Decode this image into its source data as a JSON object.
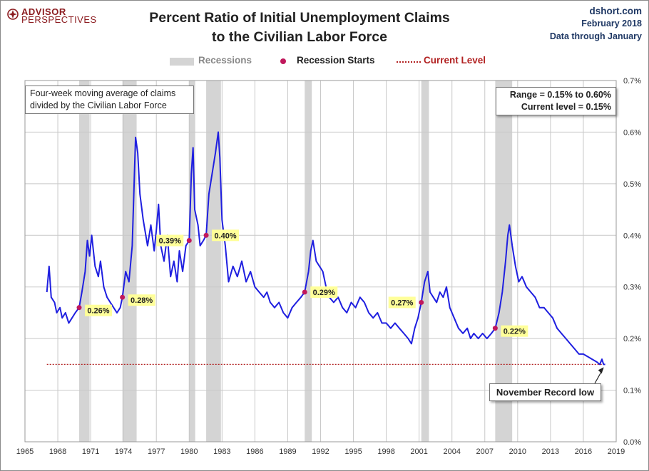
{
  "logo": {
    "line1": "ADVISOR",
    "line2": "PERSPECTIVES"
  },
  "header": {
    "title_line1": "Percent Ratio of Initial Unemployment Claims",
    "title_line2": "to the Civilian Labor Force",
    "site": "dshort.com",
    "date": "February 2018",
    "data_through": "Data through January"
  },
  "legend": {
    "recessions": "Recessions",
    "recession_starts": "Recession Starts",
    "current_level": "Current Level"
  },
  "notes": {
    "line1": "Four-week moving average of claims",
    "line2": "divided by the Civilian Labor Force"
  },
  "range_box": {
    "line1": "Range = 0.15% to 0.60%",
    "line2": "Current level = 0.15%"
  },
  "record_box": "November Record low",
  "colors": {
    "line": "#1f1fe0",
    "recession_band": "#d4d4d4",
    "recession_dot": "#c0185c",
    "current_level": "#b22222",
    "callout_fill": "#ffff99",
    "grid": "#c8c8c8",
    "logo": "#8c1c20",
    "meta_text": "#1f3864"
  },
  "chart_data": {
    "type": "line",
    "title": "Percent Ratio of Initial Unemployment Claims to the Civilian Labor Force",
    "xlim": [
      1965,
      2019
    ],
    "ylim": [
      0.0,
      0.7
    ],
    "x_ticks": [
      1965,
      1968,
      1971,
      1974,
      1977,
      1980,
      1983,
      1986,
      1989,
      1992,
      1995,
      1998,
      2001,
      2004,
      2007,
      2010,
      2013,
      2016,
      2019
    ],
    "y_ticks": [
      0.0,
      0.1,
      0.2,
      0.3,
      0.4,
      0.5,
      0.6,
      0.7
    ],
    "y_tick_labels": [
      "0.0%",
      "0.1%",
      "0.2%",
      "0.3%",
      "0.4%",
      "0.5%",
      "0.6%",
      "0.7%"
    ],
    "grid": true,
    "legend_position": "top",
    "current_level": 0.15,
    "recessions": [
      [
        1969.95,
        1970.9
      ],
      [
        1973.9,
        1975.2
      ],
      [
        1980.0,
        1980.55
      ],
      [
        1981.55,
        1982.9
      ],
      [
        1990.55,
        1991.2
      ],
      [
        2001.2,
        2001.9
      ],
      [
        2007.95,
        2009.5
      ]
    ],
    "recession_starts": [
      {
        "x": 1969.95,
        "y": 0.26,
        "label": "0.26%"
      },
      {
        "x": 1973.9,
        "y": 0.28,
        "label": "0.28%"
      },
      {
        "x": 1980.0,
        "y": 0.39,
        "label": "0.39%"
      },
      {
        "x": 1981.55,
        "y": 0.4,
        "label": "0.40%"
      },
      {
        "x": 1990.55,
        "y": 0.29,
        "label": "0.29%"
      },
      {
        "x": 2001.2,
        "y": 0.27,
        "label": "0.27%"
      },
      {
        "x": 2007.95,
        "y": 0.22,
        "label": "0.22%"
      }
    ],
    "series": [
      {
        "x": [
          1967.0,
          1967.2,
          1967.4,
          1967.7,
          1967.9,
          1968.2,
          1968.4,
          1968.7,
          1969.0,
          1969.3,
          1969.6,
          1969.95,
          1970.2,
          1970.5,
          1970.7,
          1970.9,
          1971.1,
          1971.4,
          1971.7,
          1971.9,
          1972.2,
          1972.5,
          1972.8,
          1973.1,
          1973.4,
          1973.7,
          1973.9,
          1974.2,
          1974.5,
          1974.8,
          1975.0,
          1975.1,
          1975.3,
          1975.5,
          1975.8,
          1976.2,
          1976.5,
          1976.8,
          1977.0,
          1977.2,
          1977.4,
          1977.7,
          1978.0,
          1978.3,
          1978.6,
          1978.9,
          1979.1,
          1979.4,
          1979.7,
          1980.0,
          1980.2,
          1980.35,
          1980.5,
          1980.8,
          1981.0,
          1981.3,
          1981.55,
          1981.8,
          1982.1,
          1982.4,
          1982.65,
          1982.8,
          1983.0,
          1983.3,
          1983.6,
          1984.0,
          1984.4,
          1984.8,
          1985.2,
          1985.6,
          1986.0,
          1986.4,
          1986.8,
          1987.1,
          1987.4,
          1987.8,
          1988.2,
          1988.6,
          1989.0,
          1989.4,
          1989.8,
          1990.2,
          1990.55,
          1990.9,
          1991.1,
          1991.3,
          1991.6,
          1991.9,
          1992.2,
          1992.5,
          1992.8,
          1993.2,
          1993.6,
          1994.0,
          1994.4,
          1994.8,
          1995.2,
          1995.6,
          1996.0,
          1996.4,
          1996.8,
          1997.2,
          1997.6,
          1998.0,
          1998.4,
          1998.8,
          1999.2,
          1999.6,
          2000.0,
          2000.3,
          2000.6,
          2000.9,
          2001.2,
          2001.5,
          2001.8,
          2002.0,
          2002.3,
          2002.6,
          2002.9,
          2003.2,
          2003.5,
          2003.8,
          2004.2,
          2004.6,
          2005.0,
          2005.4,
          2005.7,
          2006.0,
          2006.4,
          2006.8,
          2007.2,
          2007.6,
          2007.95,
          2008.3,
          2008.6,
          2008.9,
          2009.1,
          2009.25,
          2009.5,
          2009.8,
          2010.1,
          2010.4,
          2010.8,
          2011.2,
          2011.6,
          2012.0,
          2012.4,
          2012.8,
          2013.2,
          2013.6,
          2014.0,
          2014.4,
          2014.8,
          2015.2,
          2015.6,
          2016.0,
          2016.4,
          2016.8,
          2017.2,
          2017.5,
          2017.7,
          2017.85,
          2018.0
        ],
        "values": [
          0.29,
          0.34,
          0.28,
          0.27,
          0.25,
          0.26,
          0.24,
          0.25,
          0.23,
          0.24,
          0.25,
          0.26,
          0.29,
          0.33,
          0.39,
          0.36,
          0.4,
          0.34,
          0.32,
          0.35,
          0.3,
          0.28,
          0.27,
          0.26,
          0.25,
          0.26,
          0.28,
          0.33,
          0.31,
          0.38,
          0.52,
          0.59,
          0.56,
          0.48,
          0.43,
          0.38,
          0.42,
          0.37,
          0.41,
          0.46,
          0.38,
          0.35,
          0.4,
          0.32,
          0.35,
          0.31,
          0.37,
          0.33,
          0.38,
          0.39,
          0.52,
          0.57,
          0.45,
          0.42,
          0.38,
          0.39,
          0.4,
          0.48,
          0.52,
          0.56,
          0.6,
          0.55,
          0.43,
          0.38,
          0.31,
          0.34,
          0.32,
          0.35,
          0.31,
          0.33,
          0.3,
          0.29,
          0.28,
          0.29,
          0.27,
          0.26,
          0.27,
          0.25,
          0.24,
          0.26,
          0.27,
          0.28,
          0.29,
          0.33,
          0.37,
          0.39,
          0.35,
          0.34,
          0.33,
          0.3,
          0.28,
          0.27,
          0.28,
          0.26,
          0.25,
          0.27,
          0.26,
          0.28,
          0.27,
          0.25,
          0.24,
          0.25,
          0.23,
          0.23,
          0.22,
          0.23,
          0.22,
          0.21,
          0.2,
          0.19,
          0.22,
          0.24,
          0.27,
          0.31,
          0.33,
          0.29,
          0.28,
          0.27,
          0.29,
          0.28,
          0.3,
          0.26,
          0.24,
          0.22,
          0.21,
          0.22,
          0.2,
          0.21,
          0.2,
          0.21,
          0.2,
          0.21,
          0.22,
          0.25,
          0.29,
          0.35,
          0.4,
          0.42,
          0.38,
          0.34,
          0.31,
          0.32,
          0.3,
          0.29,
          0.28,
          0.26,
          0.26,
          0.25,
          0.24,
          0.22,
          0.21,
          0.2,
          0.19,
          0.18,
          0.17,
          0.17,
          0.165,
          0.16,
          0.155,
          0.15,
          0.16,
          0.15,
          0.15
        ]
      }
    ]
  }
}
